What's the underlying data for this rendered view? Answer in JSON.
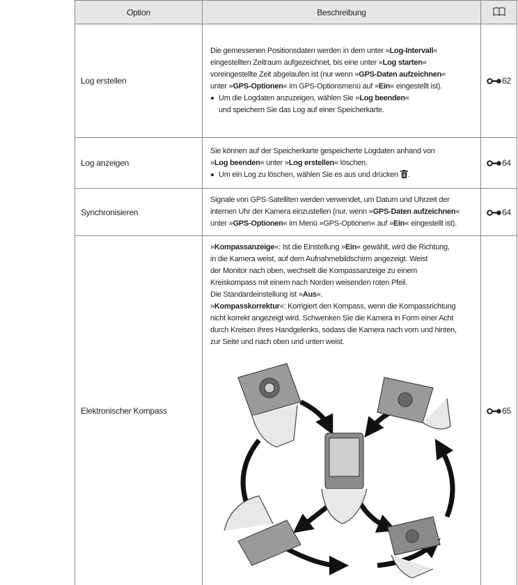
{
  "table": {
    "header": [
      "Option",
      "Beschreibung"
    ],
    "rows": [
      {
        "option": "Log erstellen",
        "paragraph": [
          [
            "Die gemessenen Positionsdaten werden in dem unter »",
            {
              "b": "Log-Intervall"
            },
            "«"
          ],
          [
            "eingestellten Zeitraum aufgezeichnet, bis eine unter »",
            {
              "b": "Log starten"
            },
            "«"
          ],
          [
            "voreingestellte Zeit abgelaufen ist (nur wenn »",
            {
              "b": "GPS-Daten aufzeichnen"
            },
            "«"
          ],
          [
            "unter »",
            {
              "b": "GPS-Optionen"
            },
            "« im GPS-Optionsmenü auf »",
            {
              "b": "Ein"
            },
            "« eingestellt ist)."
          ]
        ],
        "bullet": [
          [
            "Um die Logdaten anzuzeigen, wählen Sie »",
            {
              "b": "Log beenden"
            },
            "«"
          ],
          [
            "und speichern Sie das Log auf einer Speicherkarte."
          ]
        ],
        "ref": 62
      },
      {
        "option": "Log anzeigen",
        "paragraph": [
          [
            "Sie können auf der Speicherkarte gespeicherte Logdaten anhand von"
          ],
          [
            "»",
            {
              "b": "Log beenden"
            },
            "« unter »",
            {
              "b": "Log erstellen"
            },
            "« löschen."
          ]
        ],
        "bullet": [
          [
            "Um ein Log zu löschen, wählen Sie es aus und drücken ",
            {
              "icon": "delete"
            },
            "."
          ]
        ],
        "ref": 64
      },
      {
        "option": "Synchronisieren",
        "paragraph": [
          [
            "Signale von GPS-Satelliten werden verwendet, um Datum und Uhrzeit der"
          ],
          [
            "internen Uhr der Kamera einzustellen (nur, wenn »",
            {
              "b": "GPS-Daten aufzeichnen"
            },
            "«"
          ],
          [
            "unter »",
            {
              "b": "GPS-Optionen"
            },
            "« im Menü »GPS-Optionen« auf »",
            {
              "b": "Ein"
            },
            "« eingestellt ist)."
          ]
        ],
        "ref": 64
      },
      {
        "option": "Elektronischer Kompass",
        "paragraph": [
          [
            "»",
            {
              "b": "Kompassanzeige"
            },
            "«: Ist die Einstellung »",
            {
              "b": "Ein"
            },
            "« gewählt, wird die Richtung,"
          ],
          [
            "in die Kamera weist, auf dem Aufnahmebildschirm angezeigt. Weist"
          ],
          [
            "der Monitor nach oben, wechselt die Kompassanzeige zu einem"
          ],
          [
            "Kreiskompass mit einem nach Norden weisenden roten Pfeil."
          ],
          [
            "Die Standardeinstellung ist »",
            {
              "b": "Aus"
            },
            "«."
          ],
          [
            "»",
            {
              "b": "Kompasskorrektur"
            },
            "«: Korrigiert den Kompass, wenn die Kompassrichtung"
          ],
          [
            "nicht korrekt angezeigt wird. Schwenken Sie die Kamera in Form einer Acht"
          ],
          [
            "durch Kreisen Ihres Handgelenks, sodass die Kamera nach vorn und hinten,"
          ],
          [
            "zur Seite und nach oben und unten weist."
          ]
        ],
        "illustration": true,
        "ref": 65
      }
    ]
  }
}
